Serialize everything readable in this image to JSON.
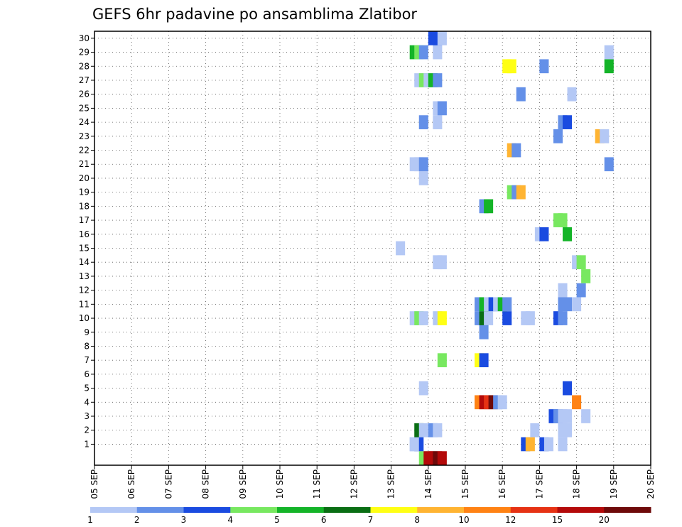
{
  "chart_data": {
    "type": "heatmap",
    "title": "GEFS 6hr padavine po ansamblima Zlatibor",
    "xlabel": "",
    "ylabel": "",
    "x_labels": [
      "05 SEP",
      "06 SEP",
      "07 SEP",
      "08 SEP",
      "09 SEP",
      "10 SEP",
      "11 SEP",
      "12 SEP",
      "13 SEP",
      "14 SEP",
      "15 SEP",
      "16 SEP",
      "17 SEP",
      "18 SEP",
      "19 SEP",
      "20 SEP"
    ],
    "y_labels": [
      "1",
      "2",
      "3",
      "4",
      "5",
      "6",
      "7",
      "8",
      "9",
      "10",
      "11",
      "12",
      "13",
      "14",
      "15",
      "16",
      "17",
      "18",
      "19",
      "20",
      "21",
      "22",
      "23",
      "24",
      "25",
      "26",
      "27",
      "28",
      "29",
      "30"
    ],
    "y_range": [
      0,
      30
    ],
    "grid": true,
    "colorbar": {
      "labels": [
        "1",
        "2",
        "3",
        "4",
        "5",
        "6",
        "7",
        "8",
        "10",
        "12",
        "15",
        "20"
      ],
      "colors": [
        "#b4c8f5",
        "#6490e8",
        "#1a4be0",
        "#78e860",
        "#14b428",
        "#0a6e14",
        "#ffff14",
        "#ffb432",
        "#ff8214",
        "#e63214",
        "#b40a0a",
        "#6e0a0a"
      ]
    },
    "cells": [
      {
        "t": 35.5,
        "m": 0,
        "c": 3
      },
      {
        "t": 36,
        "m": 0,
        "c": 10
      },
      {
        "t": 36.5,
        "m": 0,
        "c": 10
      },
      {
        "t": 37,
        "m": 0,
        "c": 11
      },
      {
        "t": 37.5,
        "m": 0,
        "c": 10
      },
      {
        "t": 34.5,
        "m": 1,
        "c": 0
      },
      {
        "t": 35,
        "m": 1,
        "c": 2
      },
      {
        "t": 34.5,
        "m": 1,
        "c": 0
      },
      {
        "t": 46.5,
        "m": 1,
        "c": 2
      },
      {
        "t": 47,
        "m": 1,
        "c": 7
      },
      {
        "t": 48.5,
        "m": 1,
        "c": 2
      },
      {
        "t": 49,
        "m": 1,
        "c": 0
      },
      {
        "t": 50.5,
        "m": 1,
        "c": 0
      },
      {
        "t": 35,
        "m": 2,
        "c": 5
      },
      {
        "t": 35.5,
        "m": 2,
        "c": 0
      },
      {
        "t": 36.5,
        "m": 2,
        "c": 1
      },
      {
        "t": 37,
        "m": 2,
        "c": 0
      },
      {
        "t": 47.5,
        "m": 2,
        "c": 0
      },
      {
        "t": 50.5,
        "m": 2,
        "c": 0
      },
      {
        "t": 51,
        "m": 2,
        "c": 0
      },
      {
        "t": 49.5,
        "m": 3,
        "c": 2
      },
      {
        "t": 50,
        "m": 3,
        "c": 1
      },
      {
        "t": 50.5,
        "m": 3,
        "c": 0
      },
      {
        "t": 51,
        "m": 3,
        "c": 0
      },
      {
        "t": 53,
        "m": 3,
        "c": 0
      },
      {
        "t": 41.5,
        "m": 4,
        "c": 8
      },
      {
        "t": 42,
        "m": 4,
        "c": 10
      },
      {
        "t": 42.5,
        "m": 4,
        "c": 9
      },
      {
        "t": 43,
        "m": 4,
        "c": 11
      },
      {
        "t": 43.5,
        "m": 4,
        "c": 1
      },
      {
        "t": 44,
        "m": 4,
        "c": 0
      },
      {
        "t": 52,
        "m": 4,
        "c": 8
      },
      {
        "t": 35.5,
        "m": 5,
        "c": 0
      },
      {
        "t": 51,
        "m": 5,
        "c": 2
      },
      {
        "t": 37.5,
        "m": 7,
        "c": 3
      },
      {
        "t": 41.5,
        "m": 7,
        "c": 6
      },
      {
        "t": 42,
        "m": 7,
        "c": 2
      },
      {
        "t": 42,
        "m": 9,
        "c": 1
      },
      {
        "t": 34.5,
        "m": 10,
        "c": 0
      },
      {
        "t": 35,
        "m": 10,
        "c": 3
      },
      {
        "t": 35.5,
        "m": 10,
        "c": 0
      },
      {
        "t": 37,
        "m": 10,
        "c": 0
      },
      {
        "t": 37.5,
        "m": 10,
        "c": 6
      },
      {
        "t": 41.5,
        "m": 10,
        "c": 1
      },
      {
        "t": 42,
        "m": 10,
        "c": 5
      },
      {
        "t": 42.5,
        "m": 10,
        "c": 0
      },
      {
        "t": 44.5,
        "m": 10,
        "c": 2
      },
      {
        "t": 46.5,
        "m": 10,
        "c": 0
      },
      {
        "t": 47,
        "m": 10,
        "c": 0
      },
      {
        "t": 50,
        "m": 10,
        "c": 2
      },
      {
        "t": 50.5,
        "m": 10,
        "c": 1
      },
      {
        "t": 41.5,
        "m": 11,
        "c": 1
      },
      {
        "t": 42,
        "m": 11,
        "c": 4
      },
      {
        "t": 42.5,
        "m": 11,
        "c": 0
      },
      {
        "t": 43,
        "m": 11,
        "c": 2
      },
      {
        "t": 43.5,
        "m": 11,
        "c": 0
      },
      {
        "t": 44,
        "m": 11,
        "c": 4
      },
      {
        "t": 44.5,
        "m": 11,
        "c": 1
      },
      {
        "t": 50.5,
        "m": 11,
        "c": 1
      },
      {
        "t": 51,
        "m": 11,
        "c": 1
      },
      {
        "t": 52,
        "m": 11,
        "c": 0
      },
      {
        "t": 50.5,
        "m": 12,
        "c": 0
      },
      {
        "t": 52.5,
        "m": 12,
        "c": 1
      },
      {
        "t": 53,
        "m": 13,
        "c": 3
      },
      {
        "t": 37,
        "m": 14,
        "c": 0
      },
      {
        "t": 37.5,
        "m": 14,
        "c": 0
      },
      {
        "t": 52,
        "m": 14,
        "c": 0
      },
      {
        "t": 52.5,
        "m": 14,
        "c": 3
      },
      {
        "t": 33,
        "m": 15,
        "c": 0
      },
      {
        "t": 48,
        "m": 16,
        "c": 0
      },
      {
        "t": 48.5,
        "m": 16,
        "c": 2
      },
      {
        "t": 51,
        "m": 16,
        "c": 4
      },
      {
        "t": 50,
        "m": 17,
        "c": 3
      },
      {
        "t": 50.5,
        "m": 17,
        "c": 3
      },
      {
        "t": 42,
        "m": 18,
        "c": 1
      },
      {
        "t": 42.5,
        "m": 18,
        "c": 4
      },
      {
        "t": 45,
        "m": 19,
        "c": 3
      },
      {
        "t": 45.5,
        "m": 19,
        "c": 1
      },
      {
        "t": 46,
        "m": 19,
        "c": 7
      },
      {
        "t": 35.5,
        "m": 20,
        "c": 0
      },
      {
        "t": 34.5,
        "m": 21,
        "c": 0
      },
      {
        "t": 35,
        "m": 21,
        "c": 0
      },
      {
        "t": 35.5,
        "m": 21,
        "c": 1
      },
      {
        "t": 55.5,
        "m": 21,
        "c": 1
      },
      {
        "t": 45,
        "m": 22,
        "c": 7
      },
      {
        "t": 45.5,
        "m": 22,
        "c": 1
      },
      {
        "t": 50,
        "m": 23,
        "c": 1
      },
      {
        "t": 54.5,
        "m": 23,
        "c": 7
      },
      {
        "t": 55,
        "m": 23,
        "c": 0
      },
      {
        "t": 37,
        "m": 24,
        "c": 0
      },
      {
        "t": 50.5,
        "m": 24,
        "c": 1
      },
      {
        "t": 51,
        "m": 24,
        "c": 2
      },
      {
        "t": 35.5,
        "m": 24,
        "c": 1
      },
      {
        "t": 37,
        "m": 25,
        "c": 0
      },
      {
        "t": 37.5,
        "m": 25,
        "c": 1
      },
      {
        "t": 46,
        "m": 26,
        "c": 1
      },
      {
        "t": 51.5,
        "m": 26,
        "c": 0
      },
      {
        "t": 35,
        "m": 27,
        "c": 0
      },
      {
        "t": 35.5,
        "m": 27,
        "c": 3
      },
      {
        "t": 36,
        "m": 27,
        "c": 0
      },
      {
        "t": 36.5,
        "m": 27,
        "c": 4
      },
      {
        "t": 37,
        "m": 27,
        "c": 1
      },
      {
        "t": 44.5,
        "m": 28,
        "c": 6
      },
      {
        "t": 45,
        "m": 28,
        "c": 6
      },
      {
        "t": 48.5,
        "m": 28,
        "c": 1
      },
      {
        "t": 55.5,
        "m": 28,
        "c": 4
      },
      {
        "t": 34.5,
        "m": 29,
        "c": 4
      },
      {
        "t": 35,
        "m": 29,
        "c": 3
      },
      {
        "t": 35.5,
        "m": 29,
        "c": 1
      },
      {
        "t": 37,
        "m": 29,
        "c": 0
      },
      {
        "t": 55.5,
        "m": 29,
        "c": 0
      },
      {
        "t": 36.5,
        "m": 30,
        "c": 2
      },
      {
        "t": 37,
        "m": 30,
        "c": 2
      },
      {
        "t": 37.5,
        "m": 30,
        "c": 0
      }
    ]
  }
}
